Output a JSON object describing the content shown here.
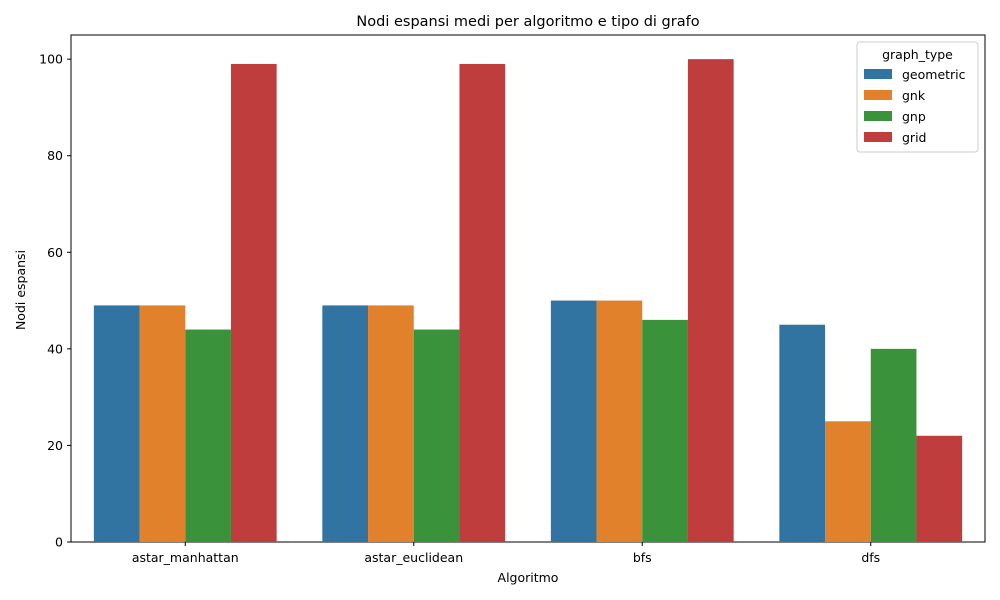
{
  "chart_data": {
    "type": "bar",
    "title": "Nodi espansi medi per algoritmo e tipo di grafo",
    "xlabel": "Algoritmo",
    "ylabel": "Nodi espansi",
    "categories": [
      "astar_manhattan",
      "astar_euclidean",
      "bfs",
      "dfs"
    ],
    "ylim": [
      0,
      105
    ],
    "yticks": [
      0,
      20,
      40,
      60,
      80,
      100
    ],
    "grid": false,
    "legend": {
      "title": "graph_type",
      "placement": "top-right"
    },
    "series": [
      {
        "name": "geometric",
        "color": "#3274a1",
        "values": [
          49,
          49,
          50,
          45
        ]
      },
      {
        "name": "gnk",
        "color": "#e1812c",
        "values": [
          49,
          49,
          50,
          25
        ]
      },
      {
        "name": "gnp",
        "color": "#3a923a",
        "values": [
          44,
          44,
          46,
          40
        ]
      },
      {
        "name": "grid",
        "color": "#c03d3e",
        "values": [
          99,
          99,
          100,
          22
        ]
      }
    ]
  }
}
